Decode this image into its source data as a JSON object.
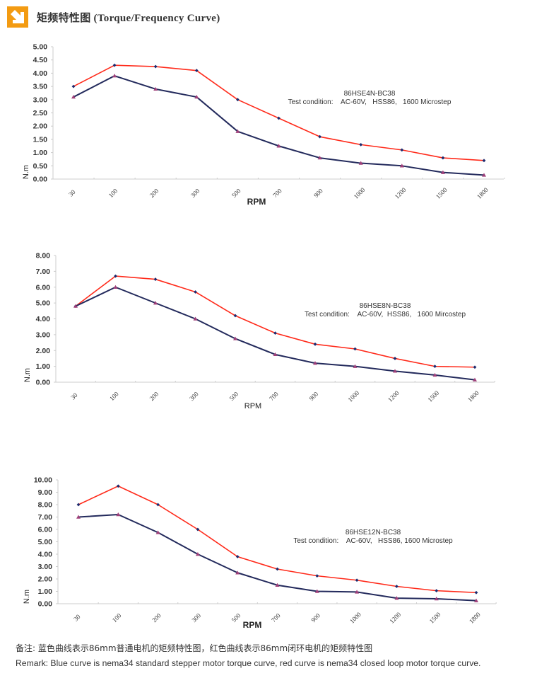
{
  "header": {
    "title": "矩频特性图 (Torque/Frequency Curve)",
    "icon": "arrow-down-right-icon",
    "icon_color": "#f39b12"
  },
  "series_colors": {
    "closed_loop": "#ff2a1a",
    "standard": "#232a5c",
    "closed_loop_marker": "#1c2a6e",
    "standard_marker": "#a0407a",
    "axis": "#cccccc"
  },
  "chart_data": [
    {
      "type": "line",
      "title": "86HSE4N-BC38",
      "subtitle": "Test condition:    AC-60V,   HSS86,   1600 Microstep",
      "xlabel": "RPM",
      "ylabel": "N.m",
      "categories": [
        "30",
        "100",
        "200",
        "300",
        "500",
        "700",
        "900",
        "1000",
        "1200",
        "1500",
        "1800"
      ],
      "ylim": [
        0,
        5
      ],
      "yticks": [
        "0.00",
        "0.50",
        "1.00",
        "1.50",
        "2.00",
        "2.50",
        "3.00",
        "3.50",
        "4.00",
        "4.50",
        "5.00"
      ],
      "grid": false,
      "series": [
        {
          "name": "closed loop motor torque curve",
          "color": "red",
          "values": [
            3.5,
            4.3,
            4.25,
            4.1,
            3.0,
            2.3,
            1.6,
            1.3,
            1.1,
            0.8,
            0.7
          ]
        },
        {
          "name": "standard stepper motor torque curve",
          "color": "blue",
          "values": [
            3.1,
            3.9,
            3.4,
            3.1,
            1.8,
            1.25,
            0.8,
            0.6,
            0.5,
            0.25,
            0.15
          ]
        }
      ]
    },
    {
      "type": "line",
      "title": "86HSE8N-BC38",
      "subtitle": "Test condition:    AC-60V,  HSS86,   1600 Mircostep",
      "xlabel": "RPM",
      "ylabel": "N.m",
      "categories": [
        "30",
        "100",
        "200",
        "300",
        "500",
        "700",
        "900",
        "1000",
        "1200",
        "1500",
        "1800"
      ],
      "ylim": [
        0,
        8
      ],
      "yticks": [
        "0.00",
        "1.00",
        "2.00",
        "3.00",
        "4.00",
        "5.00",
        "6.00",
        "7.00",
        "8.00"
      ],
      "grid": false,
      "series": [
        {
          "name": "closed loop motor torque curve",
          "color": "red",
          "values": [
            4.8,
            6.7,
            6.5,
            5.7,
            4.2,
            3.1,
            2.4,
            2.1,
            1.5,
            1.0,
            0.95
          ]
        },
        {
          "name": "standard stepper motor torque curve",
          "color": "blue",
          "values": [
            4.8,
            6.0,
            5.0,
            4.0,
            2.75,
            1.75,
            1.2,
            1.0,
            0.7,
            0.45,
            0.15
          ]
        }
      ]
    },
    {
      "type": "line",
      "title": "86HSE12N-BC38",
      "subtitle": "Test condition:    AC-60V,   HSS86, 1600 Microstep",
      "xlabel": "RPM",
      "ylabel": "N.m",
      "categories": [
        "30",
        "100",
        "200",
        "300",
        "500",
        "700",
        "900",
        "1000",
        "1200",
        "1500",
        "1800"
      ],
      "ylim": [
        0,
        10
      ],
      "yticks": [
        "0.00",
        "1.00",
        "2.00",
        "3.00",
        "4.00",
        "5.00",
        "6.00",
        "7.00",
        "8.00",
        "9.00",
        "10.00"
      ],
      "grid": false,
      "series": [
        {
          "name": "closed loop motor torque curve",
          "color": "red",
          "values": [
            8.0,
            9.5,
            8.0,
            6.0,
            3.8,
            2.8,
            2.25,
            1.9,
            1.4,
            1.05,
            0.9
          ]
        },
        {
          "name": "standard stepper motor torque curve",
          "color": "blue",
          "values": [
            7.0,
            7.2,
            5.75,
            4.0,
            2.5,
            1.5,
            1.0,
            0.95,
            0.45,
            0.4,
            0.25
          ]
        }
      ]
    }
  ],
  "footer": {
    "note_cn": "备注:  蓝色曲线表示86mm普通电机的矩频特性图，红色曲线表示86mm闭环电机的矩频特性图",
    "note_en": "Remark: Blue curve is nema34 standard stepper motor torque curve, red curve is nema34 closed loop motor torque curve."
  }
}
